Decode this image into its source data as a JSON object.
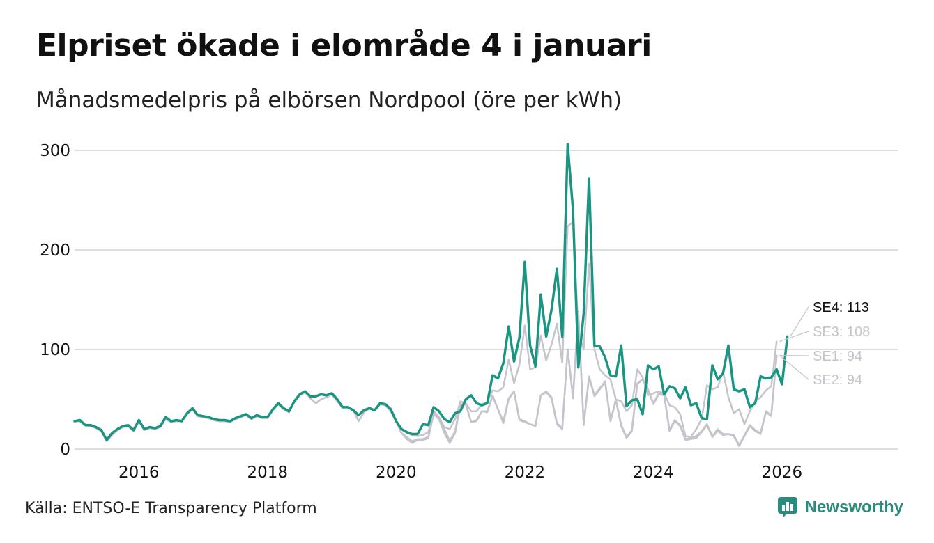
{
  "header": {
    "title": "Elpriset ökade i elområde 4 i januari",
    "subtitle": "Månadsmedelpris på elbörsen Nordpool (öre per kWh)"
  },
  "footer": {
    "source": "Källa: ENTSO-E Transparency Platform",
    "brand": "Newsworthy"
  },
  "colors": {
    "highlight": "#1a9582",
    "muted": "#c4c4cc",
    "grid": "#dddde2",
    "text": "#111111"
  },
  "chart_data": {
    "type": "line",
    "title": "Elpriset ökade i elområde 4 i januari",
    "subtitle": "Månadsmedelpris på elbörsen Nordpool (öre per kWh)",
    "xlabel": "",
    "ylabel": "",
    "x_start": "2015-01",
    "x_step": "month",
    "xlim": [
      2015.0,
      2027.8
    ],
    "ylim": [
      0,
      300
    ],
    "y_ticks": [
      0,
      100,
      200,
      300
    ],
    "x_ticks": [
      2016,
      2018,
      2020,
      2022,
      2024,
      2026
    ],
    "grid": true,
    "series": [
      {
        "name": "SE1",
        "label": "SE1: 94",
        "highlight": false,
        "values": [
          28,
          28,
          24,
          23,
          21,
          18,
          8,
          14,
          19,
          22,
          23,
          18,
          28,
          19,
          21,
          20,
          22,
          30,
          27,
          28,
          28,
          35,
          40,
          33,
          32,
          31,
          29,
          28,
          28,
          27,
          30,
          32,
          34,
          30,
          33,
          31,
          31,
          39,
          45,
          40,
          37,
          47,
          54,
          57,
          51,
          46,
          50,
          52,
          55,
          48,
          42,
          42,
          39,
          28,
          37,
          41,
          39,
          45,
          44,
          38,
          28,
          16,
          10,
          6,
          9,
          9,
          11,
          35,
          30,
          16,
          6,
          16,
          44,
          45,
          27,
          28,
          38,
          37,
          53,
          40,
          26,
          50,
          58,
          29,
          27,
          25,
          23,
          54,
          57,
          51,
          25,
          20,
          100,
          51,
          138,
          24,
          72,
          53,
          60,
          67,
          28,
          49,
          23,
          11,
          18,
          65,
          70,
          60,
          45,
          55,
          54,
          18,
          28,
          23,
          9,
          10,
          11,
          17,
          24,
          12,
          18,
          14,
          15,
          13,
          3,
          13,
          23,
          18,
          15,
          37,
          33,
          94
        ]
      },
      {
        "name": "SE2",
        "label": "SE2: 94",
        "highlight": false,
        "values": [
          28,
          28,
          24,
          23,
          21,
          18,
          8,
          14,
          19,
          22,
          23,
          18,
          28,
          19,
          21,
          20,
          22,
          30,
          27,
          28,
          28,
          35,
          40,
          33,
          32,
          31,
          29,
          28,
          28,
          27,
          30,
          32,
          34,
          30,
          33,
          31,
          31,
          39,
          45,
          40,
          37,
          47,
          54,
          57,
          51,
          46,
          50,
          52,
          55,
          48,
          42,
          42,
          39,
          28,
          37,
          41,
          39,
          45,
          44,
          38,
          28,
          16,
          12,
          8,
          10,
          10,
          12,
          36,
          30,
          20,
          8,
          18,
          45,
          45,
          27,
          29,
          38,
          38,
          54,
          40,
          28,
          51,
          58,
          30,
          28,
          25,
          23,
          54,
          58,
          52,
          26,
          21,
          100,
          52,
          138,
          25,
          73,
          54,
          61,
          68,
          28,
          50,
          24,
          12,
          19,
          66,
          70,
          60,
          46,
          56,
          55,
          19,
          29,
          24,
          10,
          11,
          13,
          18,
          25,
          13,
          20,
          15,
          15,
          14,
          4,
          14,
          24,
          19,
          16,
          38,
          34,
          94
        ]
      },
      {
        "name": "SE3",
        "label": "SE3: 108",
        "highlight": false,
        "values": [
          28,
          28,
          24,
          23,
          21,
          18,
          8,
          14,
          19,
          22,
          23,
          18,
          28,
          19,
          21,
          20,
          22,
          30,
          27,
          28,
          28,
          35,
          40,
          33,
          32,
          31,
          29,
          28,
          28,
          27,
          30,
          32,
          34,
          30,
          33,
          31,
          31,
          39,
          45,
          40,
          37,
          47,
          54,
          57,
          51,
          46,
          50,
          52,
          55,
          48,
          42,
          42,
          39,
          28,
          37,
          41,
          39,
          45,
          44,
          38,
          28,
          20,
          16,
          14,
          13,
          14,
          17,
          38,
          32,
          22,
          20,
          30,
          48,
          46,
          38,
          38,
          45,
          47,
          59,
          58,
          62,
          90,
          66,
          85,
          124,
          80,
          82,
          114,
          89,
          105,
          126,
          87,
          224,
          228,
          118,
          100,
          186,
          100,
          80,
          74,
          70,
          50,
          48,
          38,
          44,
          80,
          72,
          54,
          56,
          58,
          56,
          44,
          42,
          35,
          13,
          12,
          20,
          30,
          64,
          60,
          62,
          78,
          52,
          36,
          40,
          25,
          38,
          48,
          52,
          59,
          63,
          108
        ]
      },
      {
        "name": "SE4",
        "label": "SE4: 113",
        "highlight": true,
        "values": [
          28,
          29,
          24,
          24,
          22,
          19,
          9,
          16,
          20,
          23,
          24,
          19,
          29,
          20,
          22,
          21,
          23,
          32,
          28,
          29,
          28,
          36,
          41,
          34,
          33,
          32,
          30,
          29,
          29,
          28,
          31,
          33,
          35,
          31,
          34,
          32,
          32,
          40,
          46,
          41,
          38,
          48,
          55,
          58,
          53,
          53,
          55,
          54,
          56,
          50,
          42,
          42,
          39,
          34,
          39,
          41,
          39,
          46,
          45,
          40,
          28,
          20,
          17,
          15,
          15,
          25,
          24,
          42,
          38,
          30,
          27,
          36,
          38,
          50,
          54,
          46,
          44,
          46,
          74,
          71,
          86,
          123,
          88,
          112,
          188,
          104,
          83,
          155,
          113,
          140,
          181,
          113,
          306,
          240,
          82,
          136,
          272,
          104,
          103,
          92,
          74,
          73,
          104,
          43,
          49,
          50,
          35,
          84,
          80,
          83,
          55,
          63,
          61,
          51,
          62,
          44,
          46,
          31,
          30,
          84,
          70,
          76,
          104,
          60,
          58,
          60,
          42,
          46,
          73,
          71,
          72,
          80,
          65,
          113
        ]
      }
    ]
  }
}
